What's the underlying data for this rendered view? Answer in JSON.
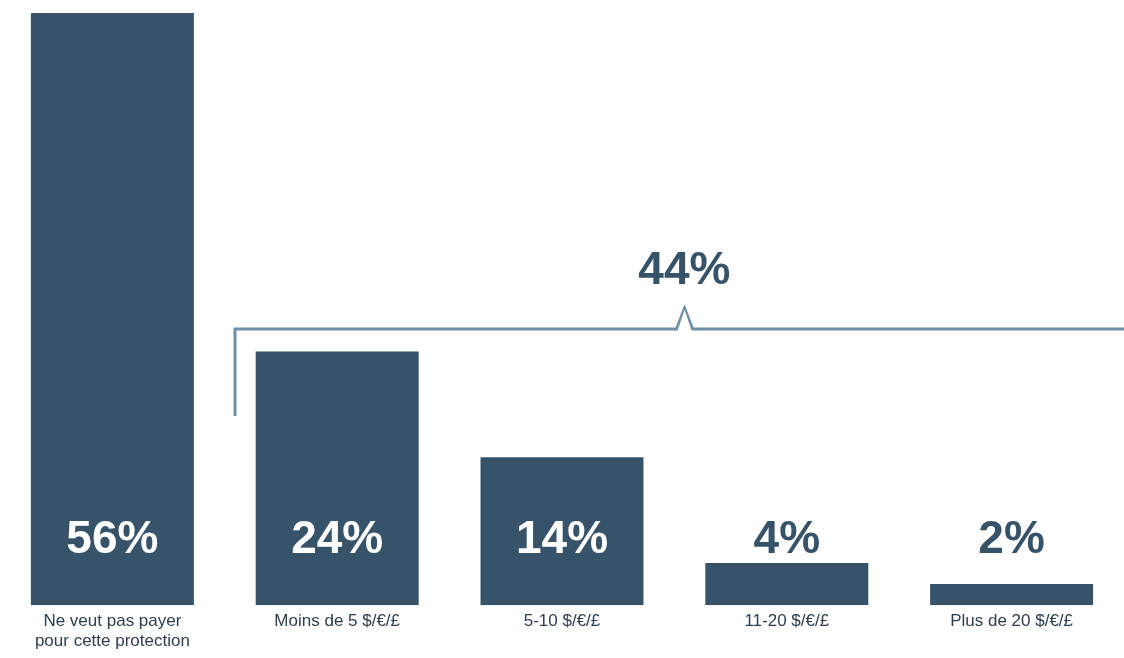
{
  "chart_data": {
    "type": "bar",
    "categories": [
      "Ne veut pas payer pour cette protection",
      "Moins de 5 $/€/£",
      "5-10 $/€/£",
      "11-20 $/€/£",
      "Plus de 20 $/€/£"
    ],
    "values": [
      56,
      24,
      14,
      4,
      2
    ],
    "value_labels": [
      "56%",
      "24%",
      "14%",
      "4%",
      "2%"
    ],
    "color": "#37536a",
    "annotations": [
      "44%"
    ],
    "grid": false,
    "legend": false
  }
}
